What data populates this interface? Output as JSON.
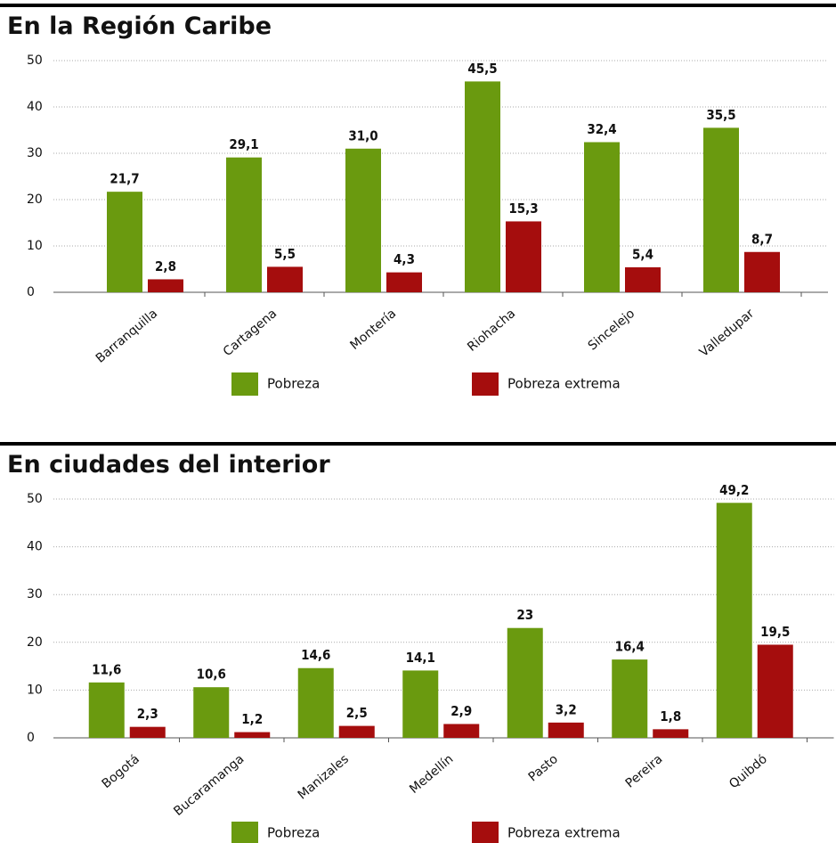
{
  "chart_data": [
    {
      "type": "bar",
      "title": "En la Región Caribe",
      "categories": [
        "Barranquilla",
        "Cartagena",
        "Montería",
        "Riohacha",
        "Sincelejo",
        "Valledupar"
      ],
      "series": [
        {
          "name": "Pobreza",
          "color": "#6a9a0f",
          "values": [
            21.7,
            29.1,
            31.0,
            45.5,
            32.4,
            35.5
          ],
          "value_labels": [
            "21,7",
            "29,1",
            "31,0",
            "45,5",
            "32,4",
            "35,5"
          ]
        },
        {
          "name": "Pobreza extrema",
          "color": "#a50d0d",
          "values": [
            2.8,
            5.5,
            4.3,
            15.3,
            5.4,
            8.7
          ],
          "value_labels": [
            "2,8",
            "5,5",
            "4,3",
            "15,3",
            "5,4",
            "8,7"
          ]
        }
      ],
      "ylim": [
        0,
        50
      ],
      "yticks": [
        0,
        10,
        20,
        30,
        40,
        50
      ],
      "grid": true,
      "legend": "bottom"
    },
    {
      "type": "bar",
      "title": "En ciudades del interior",
      "categories": [
        "Bogotá",
        "Bucaramanga",
        "Manizales",
        "Medellín",
        "Pasto",
        "Pereira",
        "Quibdó"
      ],
      "series": [
        {
          "name": "Pobreza",
          "color": "#6a9a0f",
          "values": [
            11.6,
            10.6,
            14.6,
            14.1,
            23,
            16.4,
            49.2
          ],
          "value_labels": [
            "11,6",
            "10,6",
            "14,6",
            "14,1",
            "23",
            "16,4",
            "49,2"
          ]
        },
        {
          "name": "Pobreza extrema",
          "color": "#a50d0d",
          "values": [
            2.3,
            1.2,
            2.5,
            2.9,
            3.2,
            1.8,
            19.5
          ],
          "value_labels": [
            "2,3",
            "1,2",
            "2,5",
            "2,9",
            "3,2",
            "1,8",
            "19,5"
          ]
        }
      ],
      "ylim": [
        0,
        50
      ],
      "yticks": [
        0,
        10,
        20,
        30,
        40,
        50
      ],
      "grid": true,
      "legend": "bottom"
    }
  ]
}
